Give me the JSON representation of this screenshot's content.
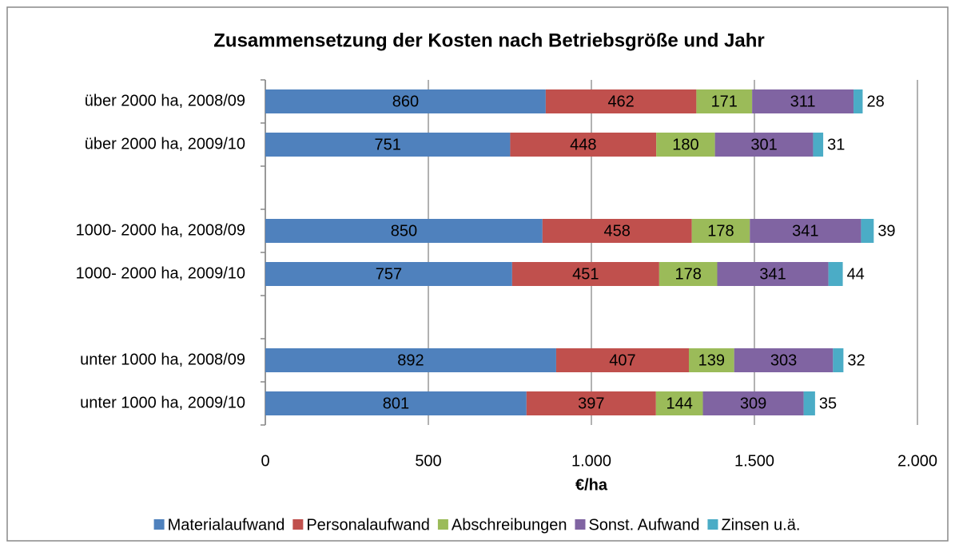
{
  "chart_data": {
    "type": "stacked_barh",
    "title": "Zusammensetzung der Kosten nach Betriebsgröße und Jahr",
    "xlabel": "€/ha",
    "categories": [
      "über 2000  ha, 2008/09",
      "über 2000  ha, 2009/10",
      null,
      "1000- 2000  ha, 2008/09",
      "1000- 2000  ha, 2009/10",
      null,
      "unter 1000  ha, 2008/09",
      "unter 1000  ha, 2009/10"
    ],
    "series": [
      {
        "name": "Materialaufwand",
        "color": "#4f81bd",
        "values": [
          860,
          751,
          null,
          850,
          757,
          null,
          892,
          801
        ]
      },
      {
        "name": "Personalaufwand",
        "color": "#c0504d",
        "values": [
          462,
          448,
          null,
          458,
          451,
          null,
          407,
          397
        ]
      },
      {
        "name": "Abschreibungen",
        "color": "#9bbb59",
        "values": [
          171,
          180,
          null,
          178,
          178,
          null,
          139,
          144
        ]
      },
      {
        "name": "Sonst. Aufwand",
        "color": "#8064a2",
        "values": [
          311,
          301,
          null,
          341,
          341,
          null,
          303,
          309
        ]
      },
      {
        "name": "Zinsen u.ä.",
        "color": "#4bacc6",
        "values": [
          28,
          31,
          null,
          39,
          44,
          null,
          32,
          35
        ]
      }
    ],
    "xlim": [
      0,
      2000
    ],
    "xticks": [
      0,
      500,
      {
        "value": 1000,
        "label": "1.000"
      },
      {
        "value": 1500,
        "label": "1.500"
      },
      {
        "value": 2000,
        "label": "2.000"
      }
    ],
    "grid": true,
    "legend": "bottom"
  }
}
